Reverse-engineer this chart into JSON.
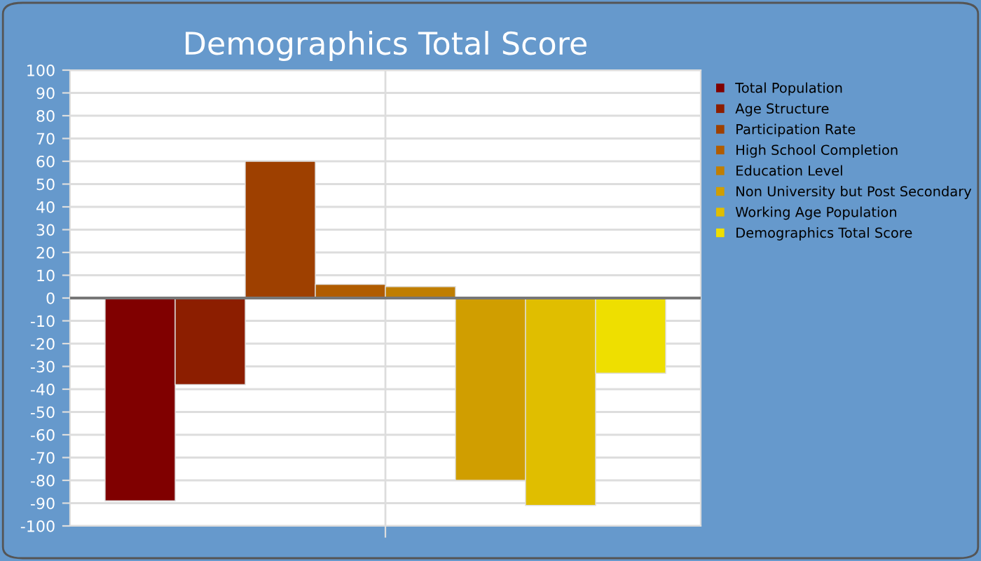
{
  "chart_data": {
    "type": "bar",
    "title": "Demographics Total Score",
    "categories": [
      null
    ],
    "series": [
      {
        "name": "Total Population",
        "color": "#800000",
        "values": [
          -89
        ]
      },
      {
        "name": "Age Structure",
        "color": "#8c1e00",
        "values": [
          -38
        ]
      },
      {
        "name": "Participation Rate",
        "color": "#9e4000",
        "values": [
          60
        ]
      },
      {
        "name": "High School Completion",
        "color": "#b05c00",
        "values": [
          6
        ]
      },
      {
        "name": "Education Level",
        "color": "#c07e00",
        "values": [
          5
        ]
      },
      {
        "name": "Non University but Post Secondary",
        "color": "#d09e00",
        "values": [
          -80
        ]
      },
      {
        "name": "Working Age Population",
        "color": "#e0be00",
        "values": [
          -91
        ]
      },
      {
        "name": "Demographics Total Score",
        "color": "#eedf00",
        "values": [
          -33
        ]
      }
    ],
    "ylim": [
      -100,
      100
    ],
    "yticks": [
      -100,
      -90,
      -80,
      -70,
      -60,
      -50,
      -40,
      -30,
      -20,
      -10,
      0,
      10,
      20,
      30,
      40,
      50,
      60,
      70,
      80,
      90,
      100
    ],
    "grid": true,
    "legend": "right"
  }
}
